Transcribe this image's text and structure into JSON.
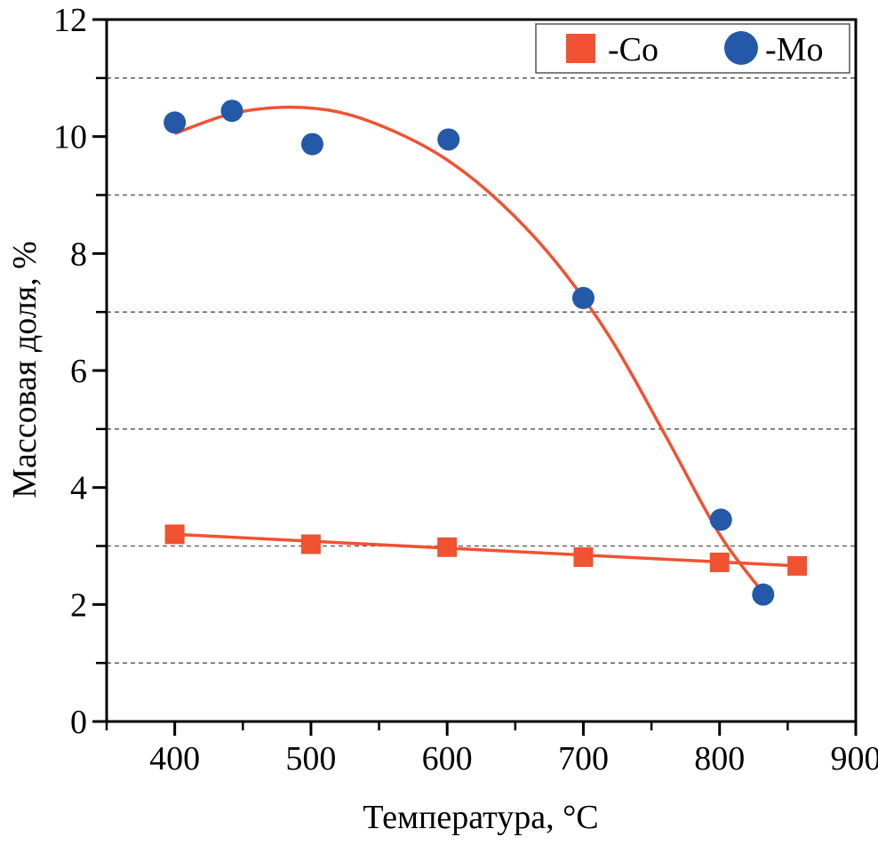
{
  "chart_data": {
    "type": "scatter",
    "title": "",
    "xlabel": "Температура, °C",
    "ylabel": "Массовая доля, %",
    "xlim": [
      350,
      900
    ],
    "ylim": [
      0,
      12
    ],
    "x_ticks": [
      400,
      500,
      600,
      700,
      800,
      900
    ],
    "x_tick_labels": [
      "400",
      "500",
      "600",
      "700",
      "800",
      "900"
    ],
    "x_minor_ticks": [
      350,
      450,
      550,
      650,
      750,
      850
    ],
    "y_ticks": [
      0,
      2,
      4,
      6,
      8,
      10,
      12
    ],
    "y_tick_labels": [
      "0",
      "2",
      "4",
      "6",
      "8",
      "10",
      "12"
    ],
    "grid": "horizontal dashed lines at odd y values (1, 3, 5, 7, 9, 11)",
    "grid_values": [
      1,
      3,
      5,
      7,
      9,
      11
    ],
    "legend_position": "top-right",
    "series": [
      {
        "name": "-Co",
        "marker": "square",
        "color": "#f05232",
        "x": [
          400,
          500,
          600,
          700,
          800,
          857
        ],
        "y": [
          3.2,
          3.03,
          2.98,
          2.81,
          2.72,
          2.66
        ],
        "fit": {
          "type": "linear",
          "color": "#f05232",
          "x_range": [
            400,
            857
          ],
          "y_range": [
            3.2,
            2.66
          ]
        }
      },
      {
        "name": "-Mo",
        "marker": "circle",
        "color": "#2458a8",
        "x": [
          400,
          442,
          501,
          601,
          700,
          801,
          832
        ],
        "y": [
          10.24,
          10.44,
          9.87,
          9.95,
          7.24,
          3.45,
          2.17
        ],
        "fit": {
          "type": "polynomial",
          "color": "#f05232",
          "points_x": [
            400,
            440,
            480,
            520,
            560,
            600,
            640,
            680,
            720,
            760,
            800,
            832
          ],
          "points_y": [
            10.05,
            10.38,
            10.5,
            10.42,
            10.1,
            9.6,
            8.85,
            7.85,
            6.55,
            4.9,
            3.2,
            2.2
          ]
        }
      }
    ]
  }
}
